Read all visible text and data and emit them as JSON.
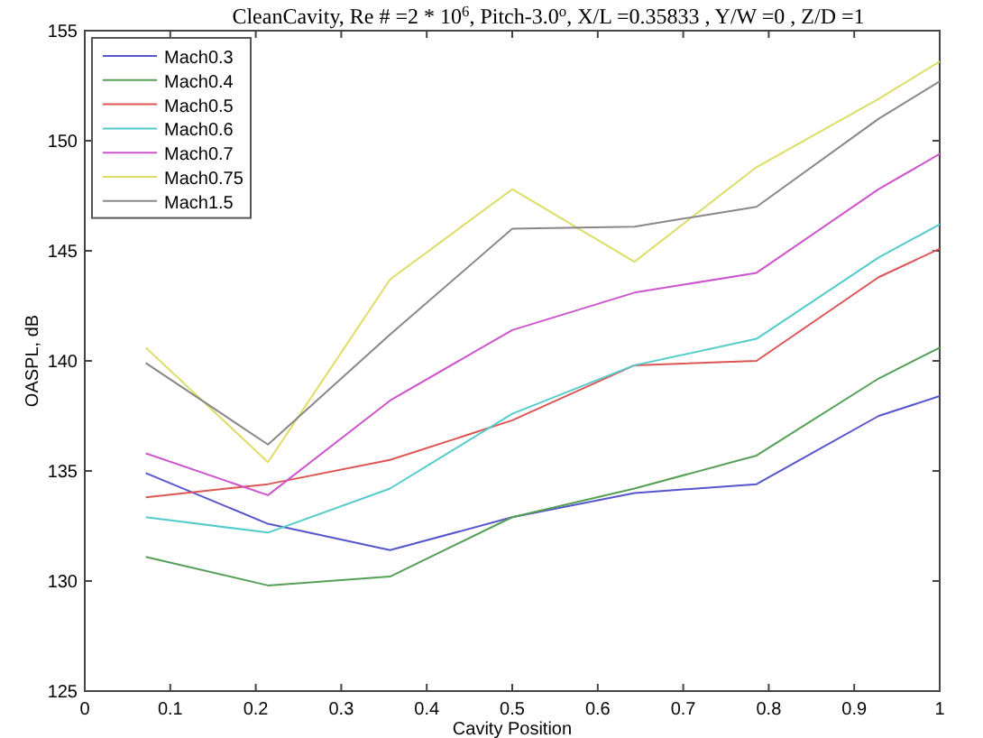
{
  "chart_data": {
    "type": "line",
    "title": "CleanCavity, Re # =2 * 10$^{6}$, Pitch-3.0$^{o}$, X/L =0.35833 , Y/W =0 , Z/D =1",
    "xlabel": "Cavity Position",
    "ylabel": "OASPL, dB",
    "x": [
      0.0714,
      0.2143,
      0.3571,
      0.5,
      0.6429,
      0.7857,
      0.9286,
      1.0
    ],
    "series": [
      {
        "name": "Mach0.3",
        "color": "#5555cc",
        "values": [
          134.9,
          132.6,
          131.4,
          132.9,
          134.0,
          134.4,
          137.5,
          138.4
        ]
      },
      {
        "name": "Mach0.4",
        "color": "#55a055",
        "values": [
          131.1,
          129.8,
          130.2,
          132.9,
          134.2,
          135.7,
          139.2,
          140.6
        ]
      },
      {
        "name": "Mach0.5",
        "color": "#dd5555",
        "values": [
          133.8,
          134.4,
          135.5,
          137.3,
          139.8,
          140.0,
          143.8,
          145.1
        ]
      },
      {
        "name": "Mach0.6",
        "color": "#55cccc",
        "values": [
          132.9,
          132.2,
          134.2,
          137.6,
          139.8,
          141.0,
          144.7,
          146.2
        ]
      },
      {
        "name": "Mach0.7",
        "color": "#cc55cc",
        "values": [
          135.8,
          133.9,
          138.2,
          141.4,
          143.1,
          144.0,
          147.8,
          149.4
        ]
      },
      {
        "name": "Mach0.75",
        "color": "#dddd66",
        "values": [
          140.6,
          135.4,
          143.7,
          147.8,
          144.5,
          148.8,
          151.9,
          153.6
        ]
      },
      {
        "name": "Mach1.5",
        "color": "#888888",
        "values": [
          139.9,
          136.2,
          141.2,
          146.0,
          146.1,
          147.0,
          151.0,
          152.7
        ]
      }
    ],
    "xlim": [
      0,
      1
    ],
    "xticks": [
      0,
      0.1,
      0.2,
      0.3,
      0.4,
      0.5,
      0.6,
      0.7,
      0.8,
      0.9,
      1
    ],
    "ylim": [
      125,
      155
    ],
    "yticks": [
      125,
      130,
      135,
      140,
      145,
      150,
      155
    ],
    "grid": false,
    "legend": "top left",
    "marker": "none",
    "line_style": "solid"
  }
}
